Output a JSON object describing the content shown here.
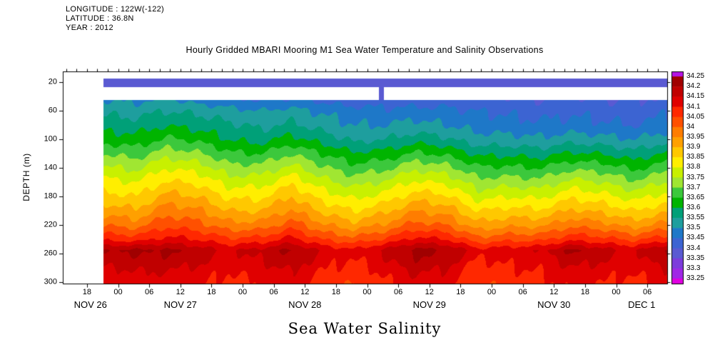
{
  "meta": {
    "longitude": "LONGITUDE : 122W(-122)",
    "latitude": "LATITUDE : 36.8N",
    "year": "YEAR : 2012"
  },
  "title": "Hourly Gridded MBARI Mooring M1 Sea Water Temperature and Salinity Observations",
  "axes": {
    "y_label": "DEPTH (m)",
    "x_label": "Sea Water Salinity",
    "y_ticks": [
      20,
      60,
      100,
      140,
      180,
      220,
      260,
      300
    ],
    "x_hour_ticks": [
      {
        "hour": 4.667,
        "label": "18"
      },
      {
        "hour": 10.667,
        "label": "00"
      },
      {
        "hour": 16.667,
        "label": "06"
      },
      {
        "hour": 22.667,
        "label": "12"
      },
      {
        "hour": 28.667,
        "label": "18"
      },
      {
        "hour": 34.667,
        "label": "00"
      },
      {
        "hour": 40.667,
        "label": "06"
      },
      {
        "hour": 46.667,
        "label": "12"
      },
      {
        "hour": 52.667,
        "label": "18"
      },
      {
        "hour": 58.667,
        "label": "00"
      },
      {
        "hour": 64.667,
        "label": "06"
      },
      {
        "hour": 70.667,
        "label": "12"
      },
      {
        "hour": 76.667,
        "label": "18"
      },
      {
        "hour": 82.667,
        "label": "00"
      },
      {
        "hour": 88.667,
        "label": "06"
      },
      {
        "hour": 94.667,
        "label": "12"
      },
      {
        "hour": 100.667,
        "label": "18"
      },
      {
        "hour": 106.667,
        "label": "00"
      },
      {
        "hour": 112.667,
        "label": "06"
      }
    ],
    "x_date_labels": [
      {
        "center_hour": 5.33,
        "label": "NOV 26"
      },
      {
        "center_hour": 22.667,
        "label": "NOV 27"
      },
      {
        "center_hour": 46.667,
        "label": "NOV 28"
      },
      {
        "center_hour": 70.667,
        "label": "NOV 29"
      },
      {
        "center_hour": 94.667,
        "label": "NOV 30"
      },
      {
        "center_hour": 111.58,
        "label": "DEC 1"
      }
    ]
  },
  "chart_data": {
    "type": "heatmap",
    "title": "Hourly Gridded MBARI Mooring M1 Sea Water Temperature and Salinity Observations",
    "variable": "Sea Water Salinity",
    "time_axis": {
      "start_label": "NOV 26",
      "end_label": "DEC 1",
      "total_hours": 116.5,
      "data_start_hour": 7.8
    },
    "depth_axis": {
      "min_m": 5,
      "max_m": 302,
      "field_top_m": 45
    },
    "surface_band": {
      "top_m": 15,
      "bottom_m": 26,
      "salinity": 33.38,
      "spike_hour": 61.3,
      "spike_half_width_hours": 0.5
    },
    "colorbar": {
      "level_min": 33.25,
      "level_max": 34.25,
      "level_step": 0.05,
      "labels_top_to_bottom": [
        "34.25",
        "34.2",
        "34.15",
        "34.1",
        "34.05",
        "34",
        "33.95",
        "33.9",
        "33.85",
        "33.8",
        "33.75",
        "33.7",
        "33.65",
        "33.6",
        "33.55",
        "33.5",
        "33.45",
        "33.4",
        "33.35",
        "33.3",
        "33.25"
      ],
      "cell_colors_bottom_to_top": [
        "#e100e1",
        "#a028e6",
        "#7d3cdc",
        "#5a5ad2",
        "#3c64d2",
        "#1e78c8",
        "#1e9e9e",
        "#00a078",
        "#00b400",
        "#3cc83c",
        "#a0e632",
        "#c8f000",
        "#ffee00",
        "#ffc800",
        "#ffa000",
        "#ff7d00",
        "#ff5000",
        "#ff2800",
        "#e00000",
        "#c00000",
        "#a00000",
        "#b414e6"
      ]
    },
    "grid": {
      "hours": [
        8,
        14,
        20,
        26,
        32,
        38,
        44,
        50,
        56,
        62,
        68,
        74,
        80,
        86,
        92,
        98,
        104,
        110,
        116
      ],
      "depths_m": [
        45,
        60,
        80,
        100,
        120,
        140,
        160,
        180,
        200,
        220,
        240,
        255,
        270,
        285,
        302
      ],
      "salinity": [
        [
          33.5,
          33.49,
          33.51,
          33.48,
          33.46,
          33.45,
          33.46,
          33.44,
          33.42,
          33.43,
          33.42,
          33.43,
          33.41,
          33.41,
          33.4,
          33.41,
          33.4,
          33.4,
          33.41
        ],
        [
          33.54,
          33.53,
          33.55,
          33.54,
          33.52,
          33.5,
          33.52,
          33.49,
          33.47,
          33.46,
          33.47,
          33.46,
          33.45,
          33.44,
          33.43,
          33.44,
          33.43,
          33.42,
          33.44
        ],
        [
          33.58,
          33.57,
          33.6,
          33.58,
          33.56,
          33.54,
          33.56,
          33.53,
          33.5,
          33.5,
          33.52,
          33.5,
          33.48,
          33.47,
          33.46,
          33.47,
          33.46,
          33.45,
          33.47
        ],
        [
          33.63,
          33.62,
          33.66,
          33.64,
          33.6,
          33.58,
          33.62,
          33.58,
          33.54,
          33.55,
          33.58,
          33.56,
          33.52,
          33.52,
          33.51,
          33.53,
          33.52,
          33.5,
          33.53
        ],
        [
          33.7,
          33.68,
          33.73,
          33.71,
          33.66,
          33.65,
          33.7,
          33.65,
          33.61,
          33.62,
          33.66,
          33.64,
          33.59,
          33.59,
          33.58,
          33.61,
          33.6,
          33.57,
          33.61
        ],
        [
          33.76,
          33.74,
          33.8,
          33.78,
          33.72,
          33.72,
          33.77,
          33.71,
          33.67,
          33.69,
          33.74,
          33.72,
          33.66,
          33.66,
          33.65,
          33.69,
          33.68,
          33.64,
          33.68
        ],
        [
          33.82,
          33.8,
          33.86,
          33.84,
          33.78,
          33.78,
          33.84,
          33.77,
          33.73,
          33.76,
          33.81,
          33.79,
          33.72,
          33.73,
          33.72,
          33.77,
          33.75,
          33.71,
          33.75
        ],
        [
          33.87,
          33.85,
          33.92,
          33.9,
          33.84,
          33.84,
          33.9,
          33.83,
          33.79,
          33.82,
          33.88,
          33.86,
          33.78,
          33.8,
          33.79,
          33.84,
          33.82,
          33.78,
          33.82
        ],
        [
          33.93,
          33.91,
          33.98,
          33.96,
          33.9,
          33.9,
          33.96,
          33.89,
          33.85,
          33.89,
          33.95,
          33.93,
          33.85,
          33.87,
          33.86,
          33.91,
          33.89,
          33.85,
          33.89
        ],
        [
          34.0,
          33.98,
          34.04,
          34.02,
          33.97,
          33.97,
          34.03,
          33.96,
          33.92,
          33.96,
          34.02,
          34.0,
          33.92,
          33.94,
          33.94,
          33.99,
          33.97,
          33.93,
          33.97
        ],
        [
          34.09,
          34.08,
          34.12,
          34.1,
          34.06,
          34.07,
          34.12,
          34.05,
          34.02,
          34.06,
          34.12,
          34.1,
          34.02,
          34.04,
          34.04,
          34.09,
          34.07,
          34.04,
          34.08
        ],
        [
          34.2,
          34.21,
          34.21,
          34.18,
          34.14,
          34.17,
          34.21,
          34.14,
          34.11,
          34.16,
          34.22,
          34.2,
          34.12,
          34.13,
          34.14,
          34.21,
          34.17,
          34.14,
          34.21
        ],
        [
          34.17,
          34.18,
          34.18,
          34.16,
          34.12,
          34.15,
          34.18,
          34.12,
          34.09,
          34.14,
          34.19,
          34.17,
          34.09,
          34.11,
          34.12,
          34.17,
          34.15,
          34.12,
          34.18
        ],
        [
          34.13,
          34.15,
          34.15,
          34.13,
          34.1,
          34.12,
          34.15,
          34.1,
          34.07,
          34.11,
          34.16,
          34.14,
          34.07,
          34.09,
          34.1,
          34.14,
          34.12,
          34.1,
          34.14
        ],
        [
          34.11,
          34.13,
          34.12,
          34.11,
          34.08,
          34.1,
          34.13,
          34.08,
          34.05,
          34.09,
          34.13,
          34.12,
          34.05,
          34.07,
          34.08,
          34.12,
          34.1,
          34.08,
          34.12
        ]
      ]
    },
    "ripple": {
      "amp1": 0.01,
      "tf1": 0.9,
      "df1": 0.08,
      "amp2": 0.007,
      "tf2": 2.2,
      "df2": 0.05,
      "ph2": 2.0
    }
  }
}
